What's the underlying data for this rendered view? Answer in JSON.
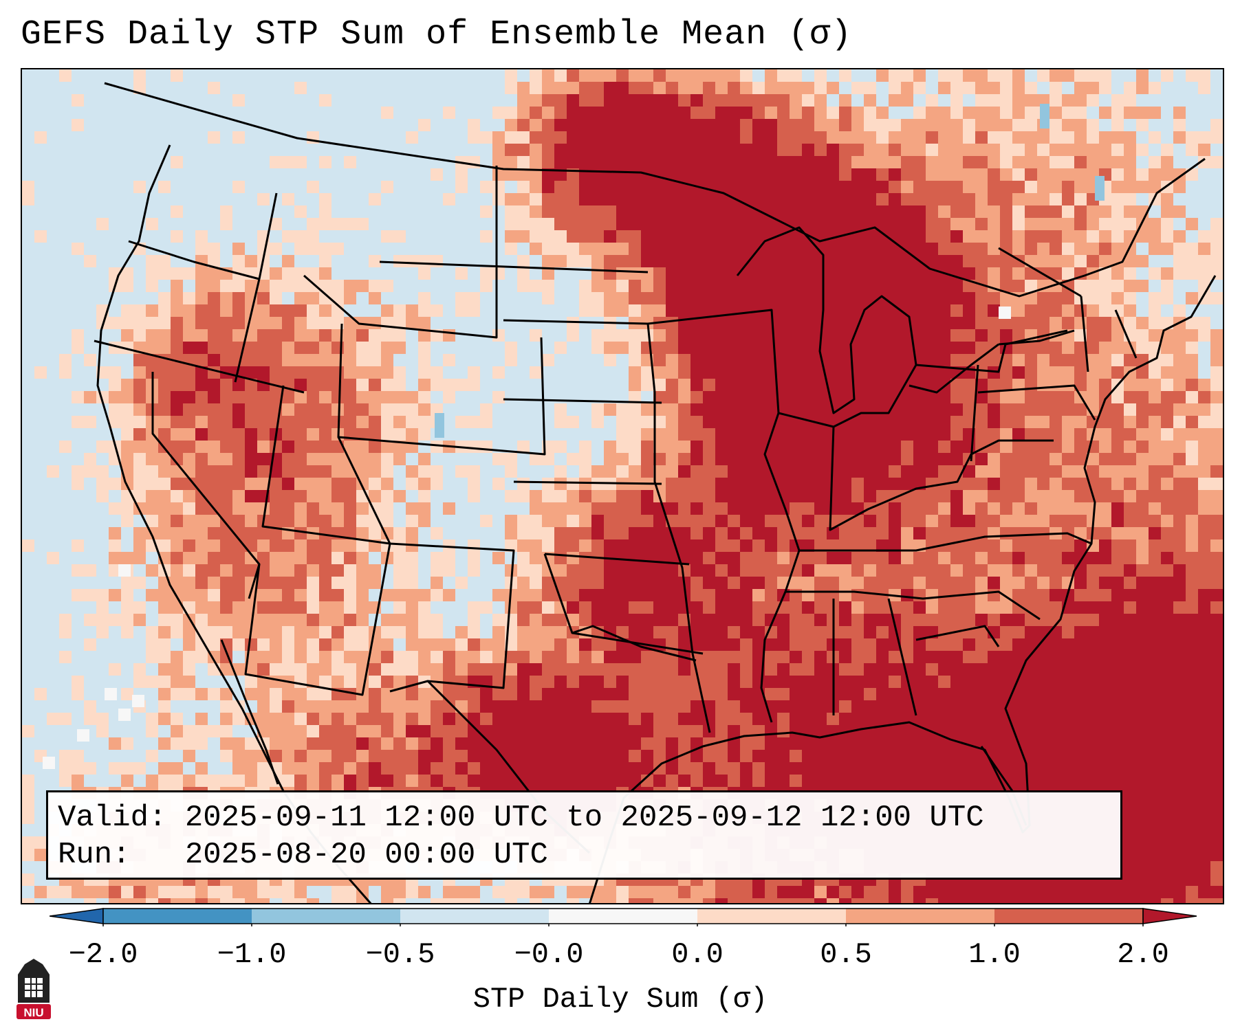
{
  "title": "GEFS Daily STP Sum of Ensemble Mean (σ)",
  "info": {
    "valid_label": "Valid:",
    "valid_text": "2025-09-11 12:00 UTC to 2025-09-12 12:00 UTC",
    "run_label": "Run:",
    "run_text": "2025-08-20 00:00 UTC"
  },
  "colorbar": {
    "label": "STP Daily Sum (σ)",
    "ticks": [
      "−2.0",
      "−1.0",
      "−0.5",
      "−0.0",
      "0.0",
      "0.5",
      "1.0",
      "2.0"
    ],
    "bins": [
      {
        "from": -2.0,
        "to": -1.0,
        "color": "#4393c3"
      },
      {
        "from": -1.0,
        "to": -0.5,
        "color": "#92c5de"
      },
      {
        "from": -0.5,
        "to": -0.0,
        "color": "#d1e5f0"
      },
      {
        "from": -0.0,
        "to": 0.0,
        "color": "#f7f7f7"
      },
      {
        "from": 0.0,
        "to": 0.5,
        "color": "#fddbc7"
      },
      {
        "from": 0.5,
        "to": 1.0,
        "color": "#f4a582"
      },
      {
        "from": 1.0,
        "to": 2.0,
        "color": "#d6604d"
      }
    ],
    "under_color": "#2166ac",
    "over_color": "#b2182b"
  },
  "map": {
    "background_color": "#d1e5f0",
    "field_colors": {
      "light": "#fddbc7",
      "moderate": "#f4a582",
      "high": "#d6604d",
      "extreme": "#b2182b",
      "neutral": "#f7f7f7",
      "negative": "#92c5de"
    }
  },
  "logo": {
    "text": "NIU",
    "color": "#c8102e"
  }
}
